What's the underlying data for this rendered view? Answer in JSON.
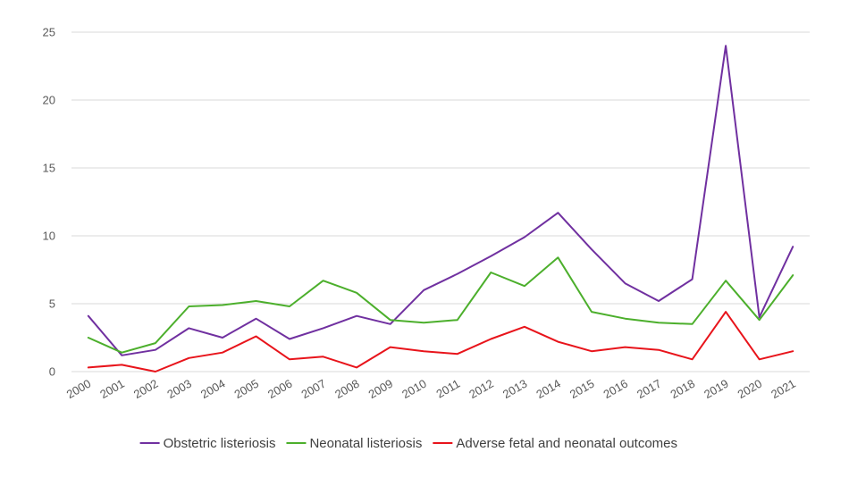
{
  "chart_data": {
    "type": "line",
    "title": "",
    "xlabel": "",
    "ylabel": "",
    "ylim": [
      0,
      25
    ],
    "yticks": [
      0,
      5,
      10,
      15,
      20,
      25
    ],
    "grid": "horizontal",
    "legend_position": "bottom",
    "categories": [
      "2000",
      "2001",
      "2002",
      "2003",
      "2004",
      "2005",
      "2006",
      "2007",
      "2008",
      "2009",
      "2010",
      "2011",
      "2012",
      "2013",
      "2014",
      "2015",
      "2016",
      "2017",
      "2018",
      "2019",
      "2020",
      "2021"
    ],
    "series": [
      {
        "name": "Obstetric listeriosis",
        "color": "#7030a0",
        "values": [
          4.1,
          1.2,
          1.6,
          3.2,
          2.5,
          3.9,
          2.4,
          3.2,
          4.1,
          3.5,
          6.0,
          7.2,
          8.5,
          9.9,
          11.7,
          9.0,
          6.5,
          5.2,
          6.8,
          24.0,
          4.0,
          9.2
        ]
      },
      {
        "name": "Neonatal listeriosis",
        "color": "#4caf2c",
        "values": [
          2.5,
          1.4,
          2.1,
          4.8,
          4.9,
          5.2,
          4.8,
          6.7,
          5.8,
          3.8,
          3.6,
          3.8,
          7.3,
          6.3,
          8.4,
          4.4,
          3.9,
          3.6,
          3.5,
          6.7,
          3.8,
          7.1
        ]
      },
      {
        "name": "Adverse fetal and neonatal outcomes",
        "color": "#e8141b",
        "values": [
          0.3,
          0.5,
          0.0,
          1.0,
          1.4,
          2.6,
          0.9,
          1.1,
          0.3,
          1.8,
          1.5,
          1.3,
          2.4,
          3.3,
          2.2,
          1.5,
          1.8,
          1.6,
          0.9,
          4.4,
          0.9,
          1.5
        ]
      }
    ]
  }
}
